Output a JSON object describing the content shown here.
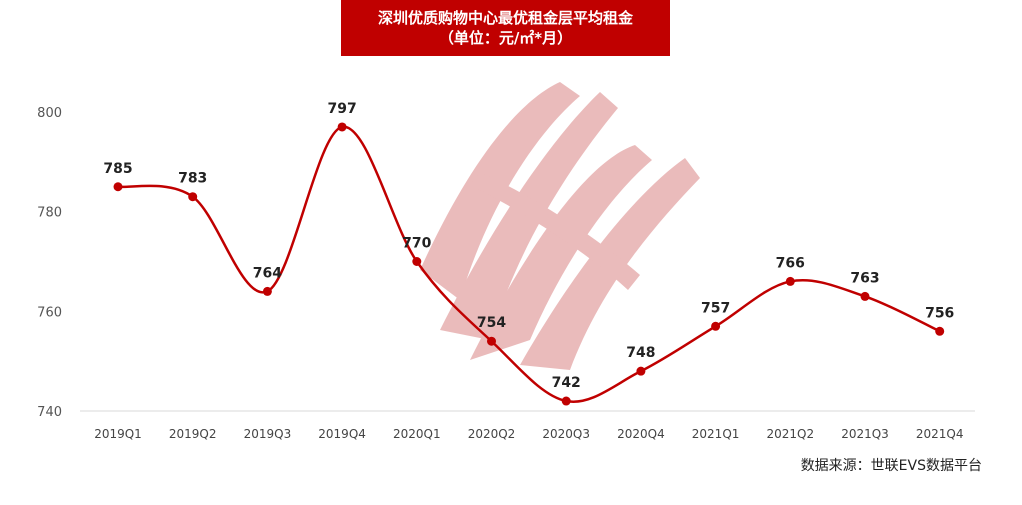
{
  "header": {
    "title": "深圳优质购物中心最优租金层平均租金",
    "subtitle": "（单位：元/㎡*月）"
  },
  "source": "数据来源：世联EVS数据平台",
  "colors": {
    "accent": "#c00000",
    "line": "#c00000",
    "watermark": "#e8b4b4"
  },
  "chart_data": {
    "type": "line",
    "title": "深圳优质购物中心最优租金层平均租金",
    "subtitle": "（单位：元/㎡*月）",
    "categories": [
      "2019Q1",
      "2019Q2",
      "2019Q3",
      "2019Q4",
      "2020Q1",
      "2020Q2",
      "2020Q3",
      "2020Q4",
      "2021Q1",
      "2021Q2",
      "2021Q3",
      "2021Q4"
    ],
    "series": [
      {
        "values": [
          785,
          783,
          764,
          797,
          770,
          754,
          742,
          748,
          757,
          766,
          763,
          756
        ]
      }
    ],
    "ylim": [
      740,
      800
    ],
    "yticks": [
      740,
      760,
      780,
      800
    ],
    "smooth": true,
    "grid": false,
    "legend": "none"
  }
}
